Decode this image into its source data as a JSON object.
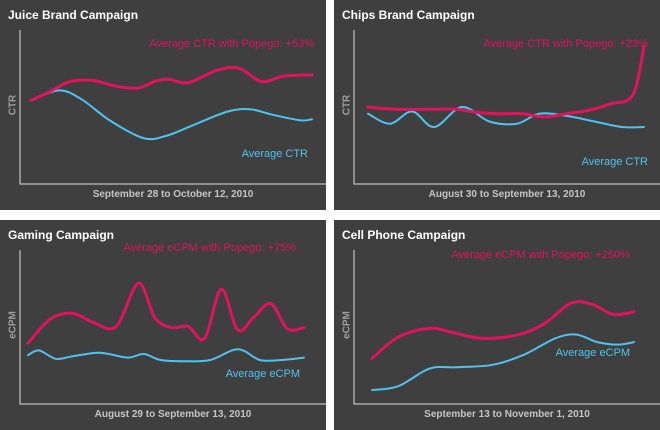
{
  "chart_data": [
    {
      "type": "line",
      "title": "Juice Brand Campaign",
      "xlabel": "September 28 to October 12, 2010",
      "ylabel": "CTR",
      "ylim": [
        0,
        100
      ],
      "grid": false,
      "series": [
        {
          "name": "Average CTR with Popego: +53%",
          "color": "#e0135c",
          "values": [
            [
              0,
              51
            ],
            [
              6,
              58
            ],
            [
              14,
              68
            ],
            [
              22,
              69
            ],
            [
              30,
              64
            ],
            [
              38,
              62
            ],
            [
              44,
              68
            ],
            [
              49,
              70
            ],
            [
              56,
              67
            ],
            [
              66,
              78
            ],
            [
              74,
              80
            ],
            [
              82,
              68
            ],
            [
              90,
              73
            ],
            [
              100,
              74
            ]
          ]
        },
        {
          "name": "Average CTR",
          "color": "#4fc3ee",
          "values": [
            [
              0,
              51
            ],
            [
              10,
              60
            ],
            [
              18,
              52
            ],
            [
              28,
              33
            ],
            [
              40,
              17
            ],
            [
              48,
              19
            ],
            [
              58,
              29
            ],
            [
              70,
              41
            ],
            [
              78,
              43
            ],
            [
              86,
              38
            ],
            [
              96,
              33
            ],
            [
              100,
              34
            ]
          ]
        }
      ]
    },
    {
      "type": "line",
      "title": "Chips Brand Campaign",
      "xlabel": "August 30 to September 13, 2010",
      "ylabel": "CTR",
      "ylim": [
        0,
        100
      ],
      "grid": false,
      "series": [
        {
          "name": "Average CTR with Popego: +23%",
          "color": "#e0135c",
          "values": [
            [
              0,
              45
            ],
            [
              10,
              43
            ],
            [
              22,
              43
            ],
            [
              32,
              43
            ],
            [
              40,
              40
            ],
            [
              48,
              39
            ],
            [
              56,
              39
            ],
            [
              64,
              36
            ],
            [
              72,
              39
            ],
            [
              80,
              42
            ],
            [
              88,
              48
            ],
            [
              96,
              56
            ],
            [
              100,
              100
            ]
          ]
        },
        {
          "name": "Average CTR",
          "color": "#4fc3ee",
          "values": [
            [
              0,
              39
            ],
            [
              8,
              30
            ],
            [
              16,
              41
            ],
            [
              24,
              27
            ],
            [
              34,
              45
            ],
            [
              44,
              32
            ],
            [
              54,
              30
            ],
            [
              62,
              39
            ],
            [
              72,
              37
            ],
            [
              82,
              32
            ],
            [
              92,
              27
            ],
            [
              100,
              27
            ]
          ]
        }
      ]
    },
    {
      "type": "line",
      "title": "Gaming Campaign",
      "xlabel": "August 29 to September 13, 2010",
      "ylabel": "eCPM",
      "ylim": [
        0,
        100
      ],
      "grid": false,
      "series": [
        {
          "name": "Average eCPM with Popego: +75%",
          "color": "#e0135c",
          "values": [
            [
              0,
              34
            ],
            [
              8,
              54
            ],
            [
              16,
              59
            ],
            [
              24,
              51
            ],
            [
              32,
              48
            ],
            [
              40,
              84
            ],
            [
              46,
              55
            ],
            [
              52,
              47
            ],
            [
              58,
              48
            ],
            [
              64,
              38
            ],
            [
              70,
              79
            ],
            [
              76,
              45
            ],
            [
              82,
              56
            ],
            [
              88,
              67
            ],
            [
              94,
              46
            ],
            [
              100,
              47
            ]
          ]
        },
        {
          "name": "Average eCPM",
          "color": "#4fc3ee",
          "values": [
            [
              0,
              24
            ],
            [
              4,
              28
            ],
            [
              10,
              21
            ],
            [
              16,
              23
            ],
            [
              26,
              26
            ],
            [
              36,
              22
            ],
            [
              42,
              25
            ],
            [
              48,
              20
            ],
            [
              56,
              19
            ],
            [
              66,
              20
            ],
            [
              76,
              29
            ],
            [
              84,
              20
            ],
            [
              92,
              20
            ],
            [
              100,
              22
            ]
          ]
        }
      ]
    },
    {
      "type": "line",
      "title": "Cell Phone Campaign",
      "xlabel": "September 13 to November 1, 2010",
      "ylabel": "eCPM",
      "ylim": [
        0,
        100
      ],
      "grid": false,
      "series": [
        {
          "name": "Average eCPM with Popego: +250%",
          "color": "#e0135c",
          "values": [
            [
              0,
              25
            ],
            [
              10,
              42
            ],
            [
              22,
              49
            ],
            [
              30,
              46
            ],
            [
              42,
              41
            ],
            [
              56,
              44
            ],
            [
              66,
              53
            ],
            [
              76,
              69
            ],
            [
              84,
              68
            ],
            [
              92,
              60
            ],
            [
              100,
              62
            ]
          ]
        },
        {
          "name": "Average eCPM",
          "color": "#4fc3ee",
          "values": [
            [
              0,
              0
            ],
            [
              10,
              3
            ],
            [
              22,
              17
            ],
            [
              32,
              18
            ],
            [
              46,
              20
            ],
            [
              58,
              28
            ],
            [
              70,
              41
            ],
            [
              78,
              44
            ],
            [
              86,
              38
            ],
            [
              94,
              36
            ],
            [
              100,
              38
            ]
          ]
        }
      ]
    }
  ],
  "labels": [
    {
      "red": "Average CTR with Popego: +53%",
      "blue": "Average CTR"
    },
    {
      "red": "Average CTR with Popego: +23%",
      "blue": "Average CTR"
    },
    {
      "red": "Average eCPM with Popego: +75%",
      "blue": "Average eCPM"
    },
    {
      "red": "Average eCPM with Popego: +250%",
      "blue": "Average eCPM"
    }
  ],
  "colors": {
    "panel_bg": "#3f3f3f",
    "popego": "#e0135c",
    "baseline": "#4fc3ee",
    "axis": "#dcdcdc"
  }
}
